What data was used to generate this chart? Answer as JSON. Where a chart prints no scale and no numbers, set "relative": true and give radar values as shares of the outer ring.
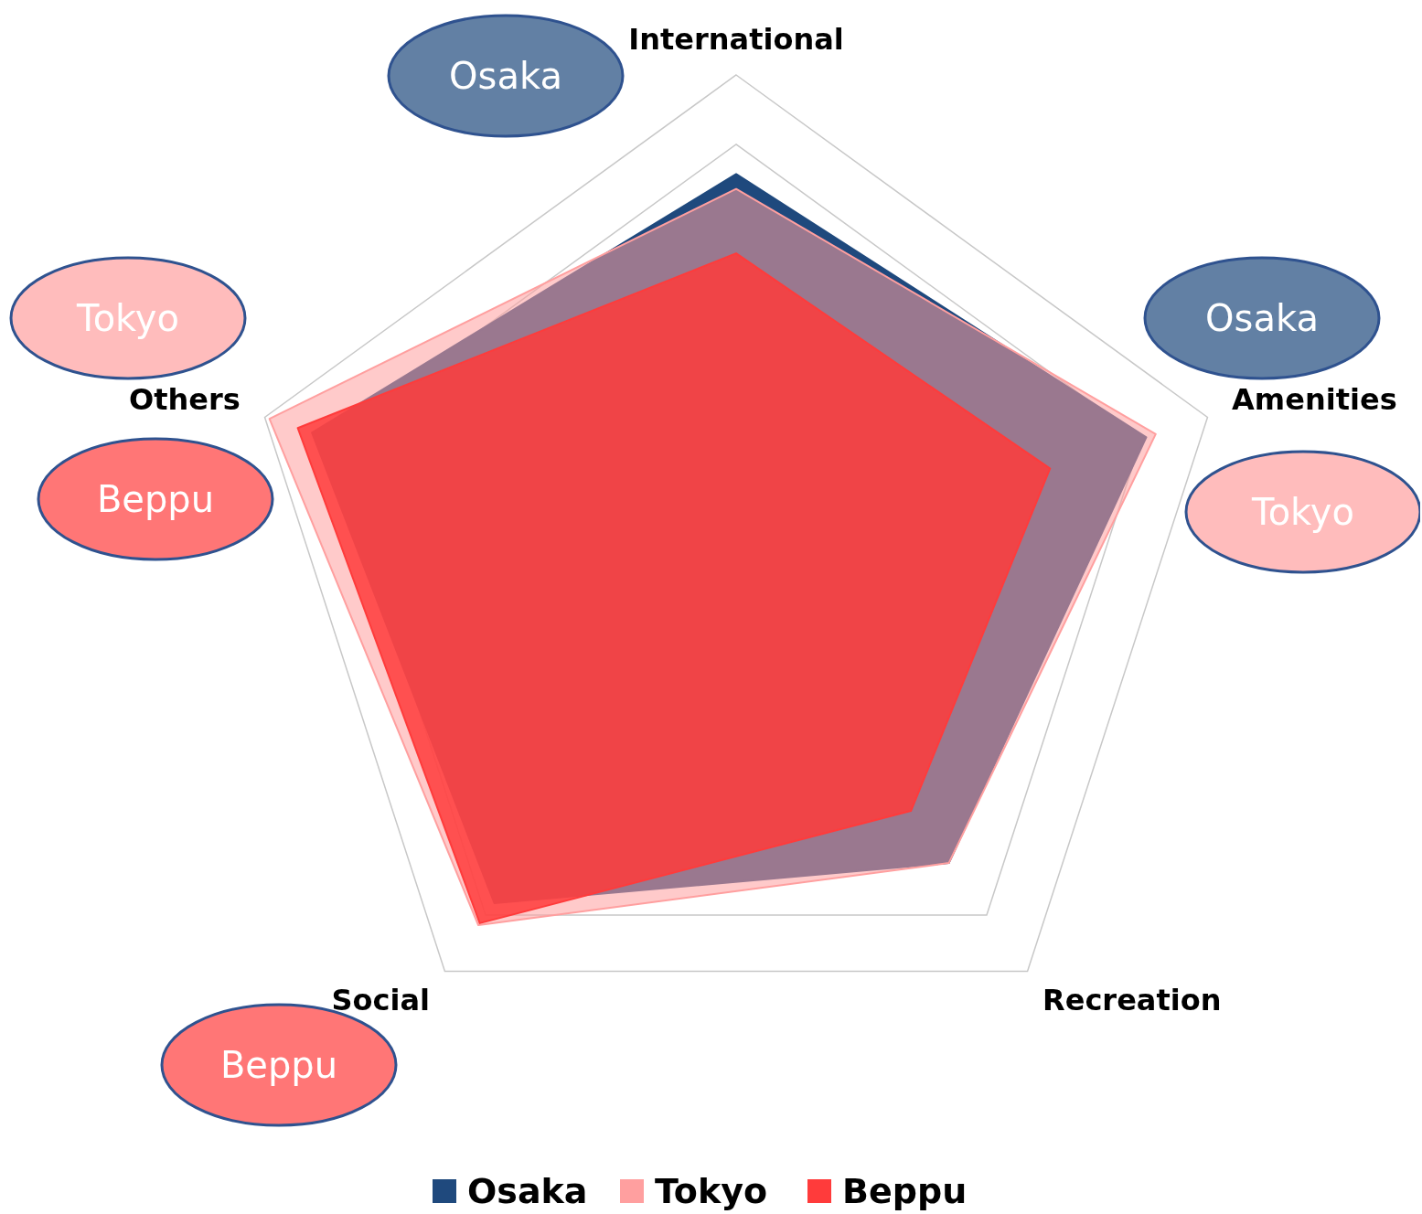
{
  "chart_data": {
    "type": "radar",
    "relative": true,
    "categories": [
      "International",
      "Amenities",
      "Recreation",
      "Social",
      "Others"
    ],
    "series": [
      {
        "name": "Osaka",
        "color": "#1f497d",
        "values": [
          0.8,
          0.87,
          0.73,
          0.83,
          0.9
        ]
      },
      {
        "name": "Tokyo",
        "color": "#ff9f9f",
        "values": [
          0.77,
          0.89,
          0.73,
          0.885,
          0.99
        ]
      },
      {
        "name": "Beppu",
        "color": "#ff3b3b",
        "values": [
          0.64,
          0.666,
          0.6,
          0.88,
          0.93
        ]
      }
    ],
    "grid": true,
    "legend": "bottom",
    "annotations": [
      "Osaka",
      "Osaka",
      "Tokyo",
      "Tokyo",
      "Beppu",
      "Beppu"
    ]
  }
}
